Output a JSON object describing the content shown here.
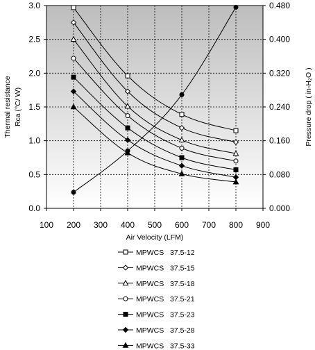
{
  "chart_data": {
    "type": "line",
    "xlabel": "Air Velocity (LFM)",
    "ylabel_left_line1": "Thermal resistance",
    "ylabel_left_line2": "Rca (°C/ W)",
    "ylabel_right": "Pressure drop  ( in-H₂O )",
    "xlim": [
      100,
      900
    ],
    "x_ticks": [
      "100",
      "200",
      "300",
      "400",
      "500",
      "600",
      "700",
      "800",
      "900"
    ],
    "ylim_left": [
      0,
      3
    ],
    "y_ticks_left": [
      "0.0",
      "0.5",
      "1.0",
      "1.5",
      "2.0",
      "2.5",
      "3.0"
    ],
    "ylim_right": [
      0,
      0.48
    ],
    "y_ticks_right": [
      "0.000",
      "0.080",
      "0.160",
      "0.240",
      "0.320",
      "0.400",
      "0.480"
    ],
    "grid": true,
    "legend_position": "below-chart",
    "x": [
      200,
      400,
      600,
      800
    ],
    "series": [
      {
        "name": "MPWCS   37.5-12",
        "marker": "square-open",
        "values": [
          2.97,
          1.96,
          1.39,
          1.15
        ]
      },
      {
        "name": "MPWCS   37.5-15",
        "marker": "diamond-open",
        "values": [
          2.75,
          1.73,
          1.19,
          0.98
        ]
      },
      {
        "name": "MPWCS   37.5-18",
        "marker": "triangle-open",
        "values": [
          2.5,
          1.51,
          1.01,
          0.81
        ]
      },
      {
        "name": "MPWCS   37.5-21",
        "marker": "circle-open",
        "values": [
          2.22,
          1.37,
          0.89,
          0.7
        ]
      },
      {
        "name": "MPWCS   37.5-23",
        "marker": "square-filled",
        "values": [
          1.94,
          1.19,
          0.75,
          0.57
        ]
      },
      {
        "name": "MPWCS   37.5-28",
        "marker": "diamond-filled",
        "values": [
          1.73,
          1.01,
          0.63,
          0.46
        ]
      },
      {
        "name": "MPWCS   37.5-33",
        "marker": "triangle-filled",
        "values": [
          1.5,
          0.82,
          0.51,
          0.39
        ]
      }
    ],
    "pressure_drop": {
      "axis": "right",
      "marker": "circle-filled",
      "x": [
        200,
        400,
        600,
        800
      ],
      "values": [
        0.038,
        0.136,
        0.269,
        0.476
      ]
    }
  }
}
